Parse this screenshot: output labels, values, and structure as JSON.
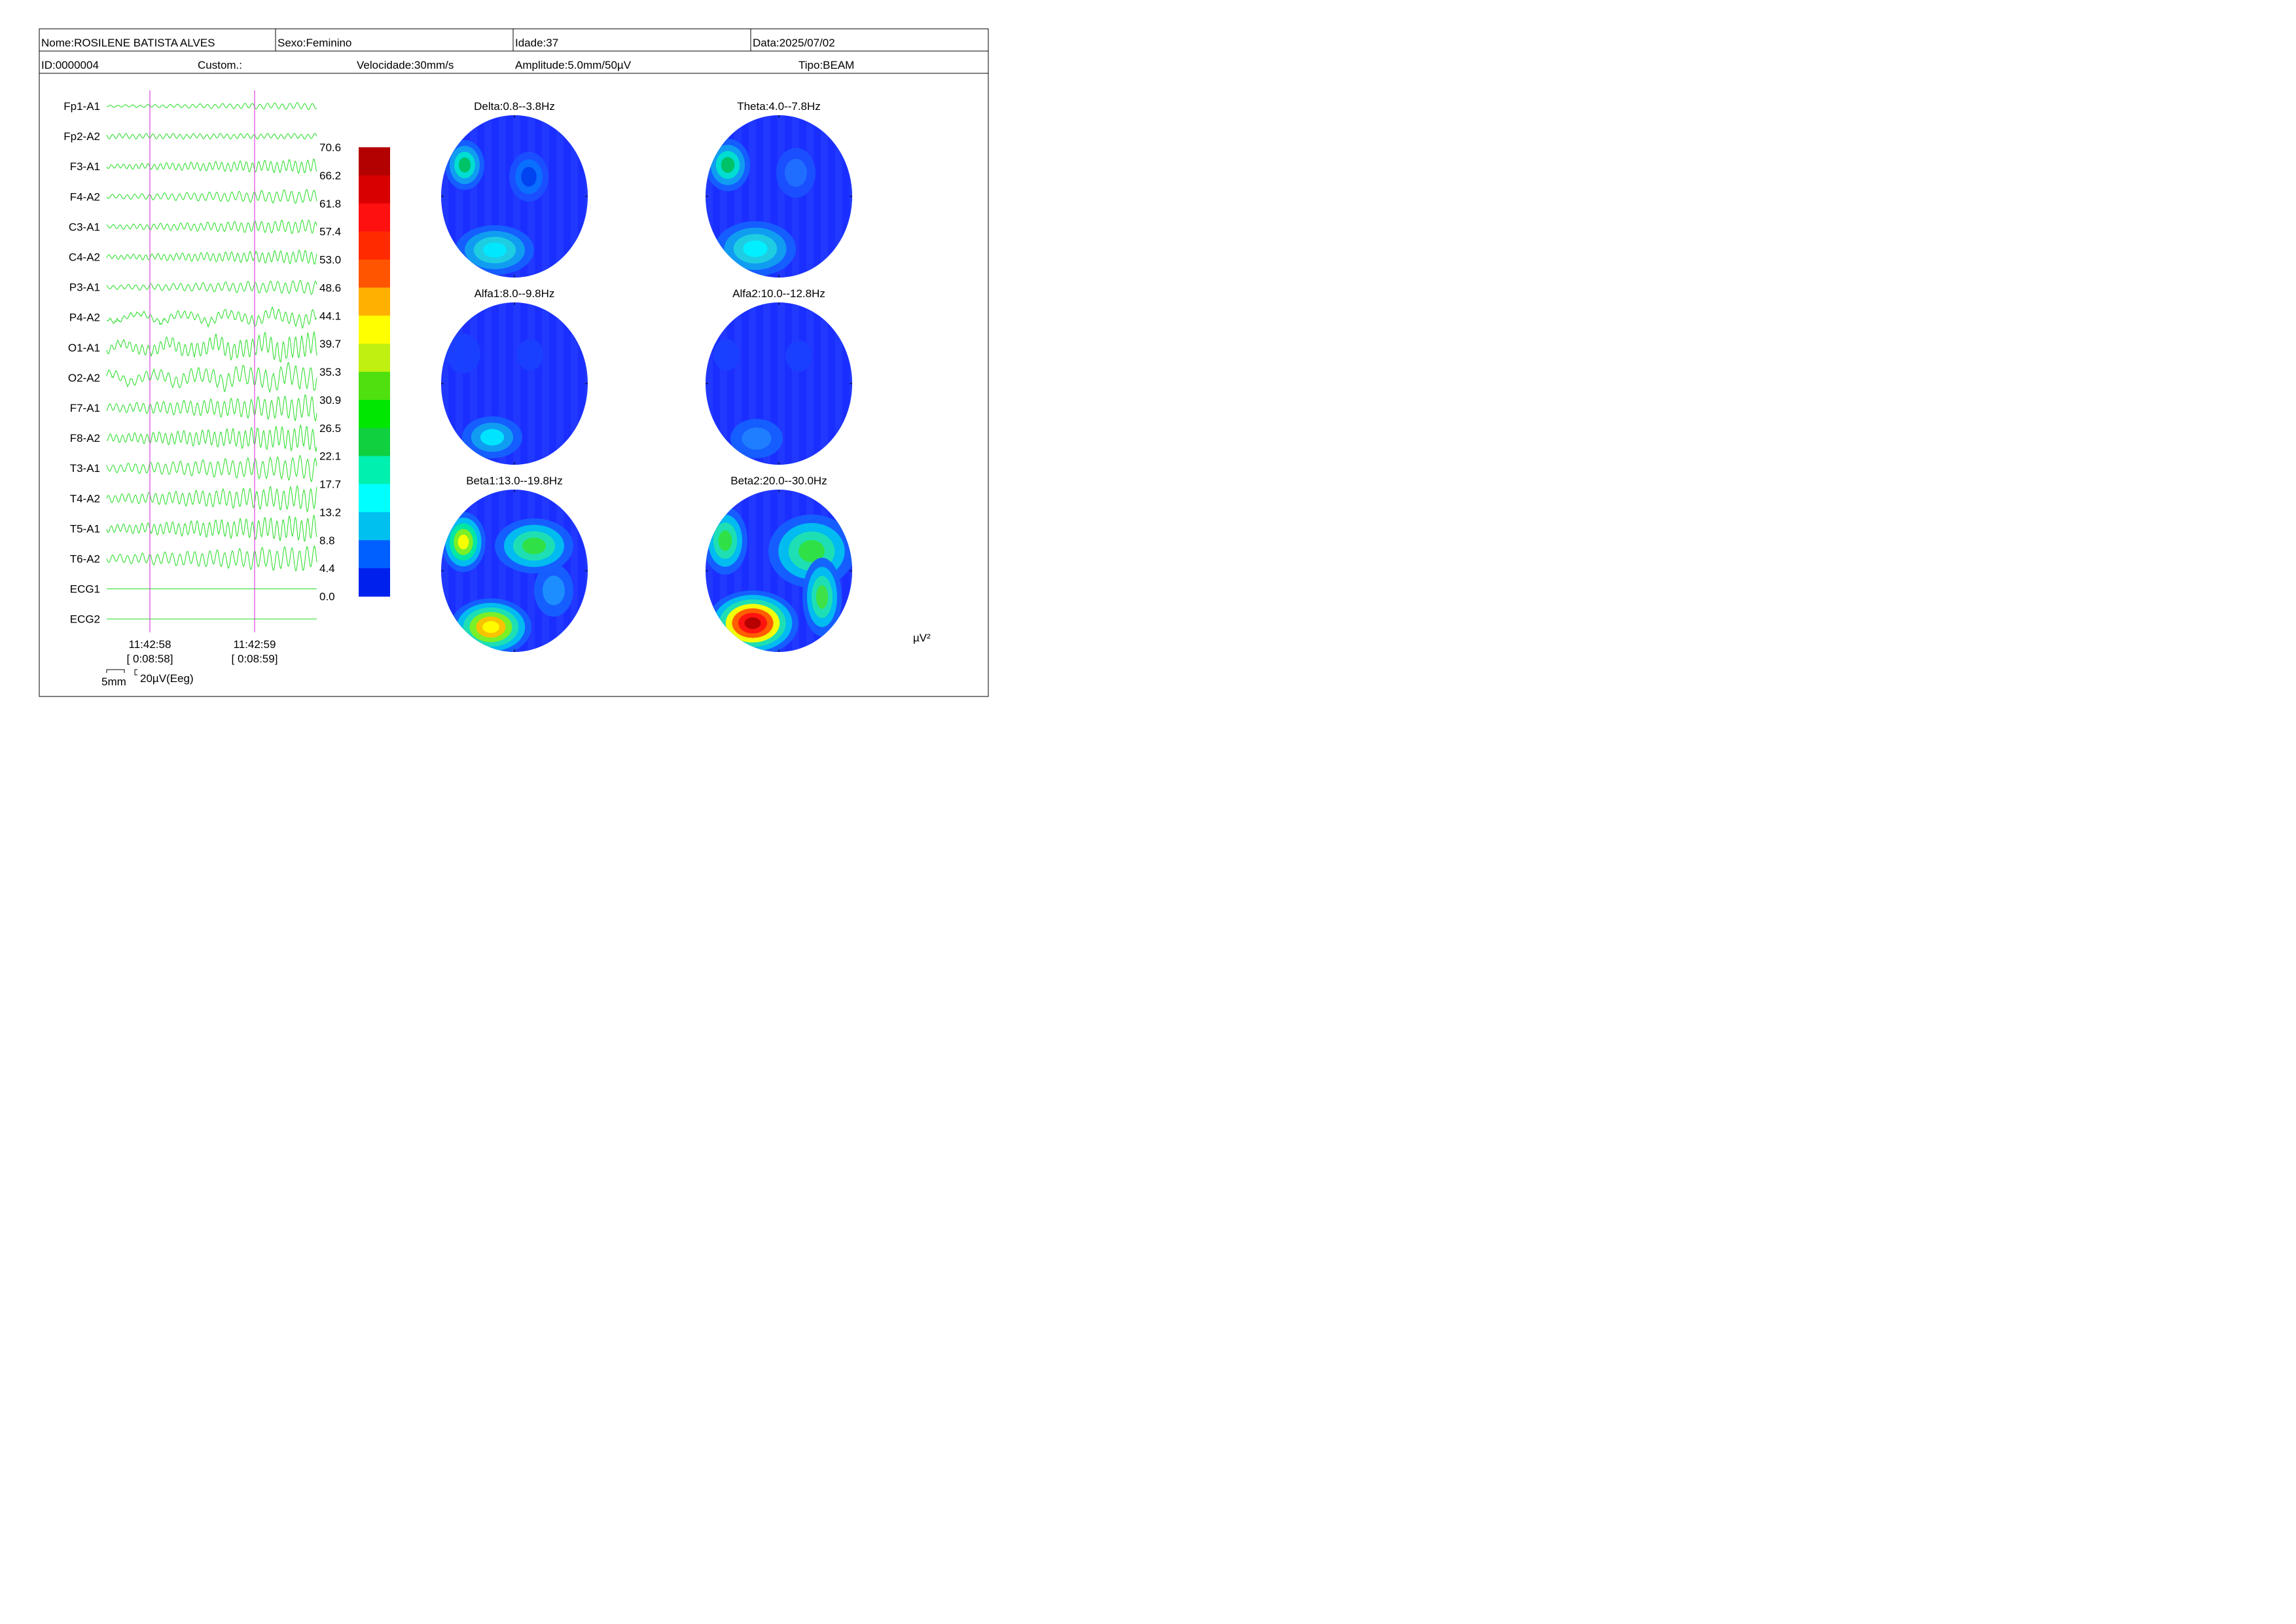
{
  "header": {
    "row1": {
      "name": "Nome:ROSILENE BATISTA ALVES",
      "sex": "Sexo:Feminino",
      "age": "Idade:37",
      "date": "Data:2025/07/02"
    },
    "row2": {
      "id": "ID:0000004",
      "custom": "Custom.:",
      "speed": "Velocidade:30mm/s",
      "amplitude": "Amplitude:5.0mm/50µV",
      "type": "Tipo:BEAM"
    }
  },
  "eeg": {
    "channels": [
      "Fp1-A1",
      "Fp2-A2",
      "F3-A1",
      "F4-A2",
      "C3-A1",
      "C4-A2",
      "P3-A1",
      "P4-A2",
      "O1-A1",
      "O2-A2",
      "F7-A1",
      "F8-A2",
      "T3-A1",
      "T4-A2",
      "T5-A1",
      "T6-A2",
      "ECG1",
      "ECG2"
    ],
    "trace_color": "#22dd22",
    "marker_color": "#dd44dd",
    "markers": [
      {
        "time": "11:42:58",
        "elapsed": "[ 0:08:58]"
      },
      {
        "time": "11:42:59",
        "elapsed": "[ 0:08:59]"
      }
    ],
    "scale": {
      "time_label": "5mm",
      "amplitude_label": "20µV(Eeg)"
    }
  },
  "colorbar": {
    "labels": [
      "70.6",
      "66.2",
      "61.8",
      "57.4",
      "53.0",
      "48.6",
      "44.1",
      "39.7",
      "35.3",
      "30.9",
      "26.5",
      "22.1",
      "17.7",
      "13.2",
      "8.8",
      "4.4",
      "0.0"
    ],
    "colors": [
      "#b30000",
      "#d80000",
      "#ff1010",
      "#ff2a00",
      "#ff5500",
      "#ffb000",
      "#ffff00",
      "#c0f010",
      "#50e010",
      "#00e800",
      "#10d040",
      "#00f0b0",
      "#00ffff",
      "#00c0f0",
      "#0060ff",
      "#0020ee"
    ]
  },
  "maps": [
    {
      "title": "Delta:0.8--3.8Hz"
    },
    {
      "title": "Theta:4.0--7.8Hz"
    },
    {
      "title": "Alfa1:8.0--9.8Hz"
    },
    {
      "title": "Alfa2:10.0--12.8Hz"
    },
    {
      "title": "Beta1:13.0--19.8Hz"
    },
    {
      "title": "Beta2:20.0--30.0Hz"
    }
  ],
  "unit_label": "µV²"
}
